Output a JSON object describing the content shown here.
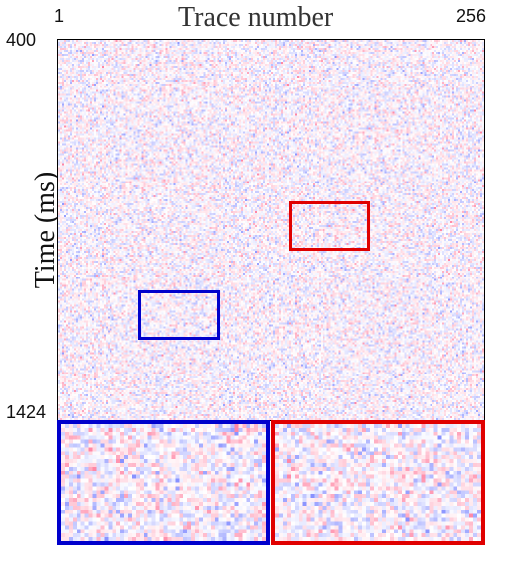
{
  "title": "Trace number",
  "ylabel": "Time (ms)",
  "x_ticks": {
    "left": "1",
    "right": "256"
  },
  "y_ticks": {
    "top": "400",
    "bottom": "1424"
  },
  "colors": {
    "roi_blue": "#0000cc",
    "roi_red": "#e00000",
    "positive": "#b00020",
    "negative": "#2030c0"
  },
  "icons": {
    "blue_box": "blue-roi-rectangle",
    "red_box": "red-roi-rectangle"
  }
}
